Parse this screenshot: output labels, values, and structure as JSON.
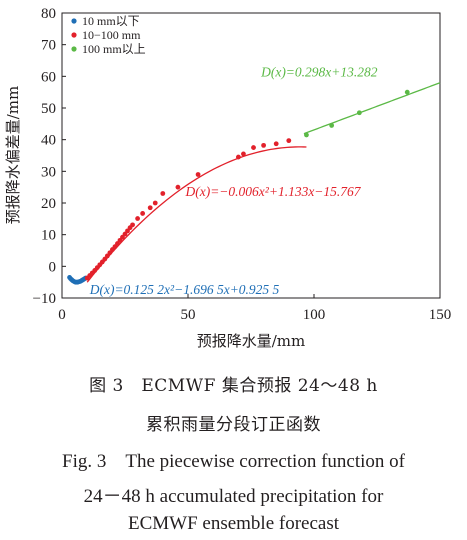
{
  "chart_data": {
    "type": "scatter",
    "xlabel": "预报降水量/mm",
    "ylabel": "预报降水偏差量/mm",
    "xlim": [
      0,
      150
    ],
    "ylim": [
      -10,
      80
    ],
    "x_ticks": [
      "0",
      "50",
      "100",
      "150"
    ],
    "y_ticks": [
      "−10",
      "0",
      "10",
      "20",
      "30",
      "40",
      "50",
      "60",
      "70",
      "80"
    ],
    "legend_position": "top-left",
    "series": [
      {
        "name": "10 mm以下",
        "color": "#1f6fb6",
        "points": [
          [
            3.0,
            -3.5
          ],
          [
            3.4,
            -3.9
          ],
          [
            3.8,
            -4.2
          ],
          [
            4.2,
            -4.5
          ],
          [
            4.6,
            -4.7
          ],
          [
            5.0,
            -4.9
          ],
          [
            5.4,
            -5.0
          ],
          [
            5.8,
            -5.0
          ],
          [
            6.2,
            -5.0
          ],
          [
            6.6,
            -4.9
          ],
          [
            7.0,
            -4.8
          ],
          [
            7.4,
            -4.7
          ],
          [
            7.8,
            -4.5
          ],
          [
            8.2,
            -4.3
          ],
          [
            8.6,
            -4.1
          ],
          [
            9.0,
            -3.9
          ],
          [
            9.4,
            -3.7
          ]
        ],
        "fit": {
          "label": "D(x)=0.125 2x²−1.696 5x+0.925 5",
          "coefficients": [
            0.1252,
            -1.6965,
            0.9255
          ],
          "x_range": [
            3,
            10
          ]
        }
      },
      {
        "name": "10−100 mm",
        "color": "#e2212b",
        "points": [
          [
            10,
            -3.7
          ],
          [
            11,
            -2.9
          ],
          [
            12,
            -2.1
          ],
          [
            13,
            -1.3
          ],
          [
            14,
            -0.4
          ],
          [
            15,
            0.5
          ],
          [
            16,
            1.4
          ],
          [
            17,
            2.3
          ],
          [
            18,
            3.3
          ],
          [
            19,
            4.3
          ],
          [
            20,
            5.3
          ],
          [
            21,
            6.2
          ],
          [
            22,
            7.2
          ],
          [
            23,
            8.2
          ],
          [
            24,
            9.2
          ],
          [
            25,
            10.2
          ],
          [
            26,
            11.2
          ],
          [
            27,
            12.2
          ],
          [
            28,
            13.1
          ],
          [
            30,
            15.1
          ],
          [
            32,
            16.7
          ],
          [
            35,
            18.5
          ],
          [
            37,
            20.0
          ],
          [
            40,
            23.0
          ],
          [
            46,
            25.0
          ],
          [
            54,
            29.0
          ],
          [
            70,
            34.5
          ],
          [
            72,
            35.5
          ],
          [
            76,
            37.5
          ],
          [
            80,
            38.2
          ],
          [
            85,
            38.7
          ],
          [
            90,
            39.7
          ]
        ],
        "fit": {
          "label": "D(x)=−0.006x²+1.133x−15.767",
          "coefficients": [
            -0.006,
            1.133,
            -15.767
          ],
          "x_range": [
            10,
            97
          ]
        }
      },
      {
        "name": "100 mm以上",
        "color": "#5bb946",
        "points": [
          [
            97,
            41.5
          ],
          [
            107,
            44.5
          ],
          [
            118,
            48.5
          ],
          [
            137,
            55.0
          ]
        ],
        "fit": {
          "label": "D(x)=0.298x+13.282",
          "coefficients": [
            0.298,
            13.282
          ],
          "x_range": [
            96,
            150
          ]
        }
      }
    ]
  },
  "captions": {
    "zh_line1": "图 3　ECMWF 集合预报 24～48 h",
    "zh_line2": "累积雨量分段订正函数",
    "en_line1": "Fig. 3　The piecewise correction function of",
    "en_line2": "24－48 h accumulated precipitation for",
    "en_line3": "ECMWF ensemble forecast"
  }
}
